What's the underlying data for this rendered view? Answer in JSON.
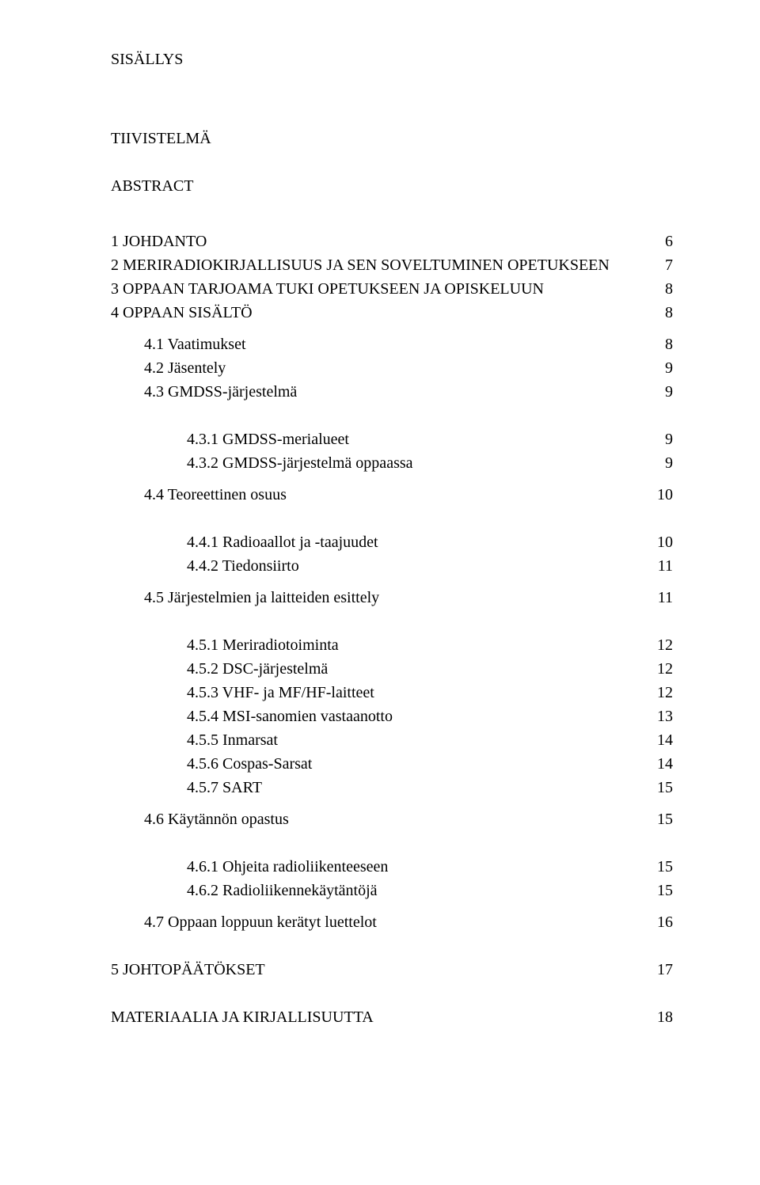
{
  "headings": {
    "sisallys": "SISÄLLYS",
    "tiivistelma": "TIIVISTELMÄ",
    "abstract": "ABSTRACT"
  },
  "toc": [
    {
      "label": "1  JOHDANTO",
      "page": "6",
      "indent": 0
    },
    {
      "label": "2  MERIRADIOKIRJALLISUUS JA SEN SOVELTUMINEN OPETUKSEEN",
      "page": "7",
      "indent": 0
    },
    {
      "label": "3  OPPAAN TARJOAMA TUKI OPETUKSEEN JA OPISKELUUN",
      "page": "8",
      "indent": 0
    },
    {
      "label": "4  OPPAAN SISÄLTÖ",
      "page": "8",
      "indent": 0
    },
    {
      "label": "4.1  Vaatimukset",
      "page": "8",
      "indent": 1
    },
    {
      "label": "4.2  Jäsentely",
      "page": "9",
      "indent": 1
    },
    {
      "label": "4.3  GMDSS-järjestelmä",
      "page": "9",
      "indent": 1
    },
    {
      "label": "4.3.1  GMDSS-merialueet",
      "page": "9",
      "indent": 2
    },
    {
      "label": "4.3.2  GMDSS-järjestelmä oppaassa",
      "page": "9",
      "indent": 2
    },
    {
      "label": "4.4  Teoreettinen osuus",
      "page": "10",
      "indent": 1
    },
    {
      "label": "4.4.1  Radioaallot ja -taajuudet",
      "page": "10",
      "indent": 2
    },
    {
      "label": "4.4.2  Tiedonsiirto",
      "page": "11",
      "indent": 2
    },
    {
      "label": "4.5  Järjestelmien ja laitteiden esittely",
      "page": "11",
      "indent": 1
    },
    {
      "label": "4.5.1  Meriradiotoiminta",
      "page": "12",
      "indent": 2
    },
    {
      "label": "4.5.2  DSC-järjestelmä",
      "page": "12",
      "indent": 2
    },
    {
      "label": "4.5.3  VHF- ja MF/HF-laitteet",
      "page": "12",
      "indent": 2
    },
    {
      "label": "4.5.4  MSI-sanomien vastaanotto",
      "page": "13",
      "indent": 2
    },
    {
      "label": "4.5.5  Inmarsat",
      "page": "14",
      "indent": 2
    },
    {
      "label": "4.5.6  Cospas-Sarsat",
      "page": "14",
      "indent": 2
    },
    {
      "label": "4.5.7  SART",
      "page": "15",
      "indent": 2
    },
    {
      "label": "4.6  Käytännön opastus",
      "page": "15",
      "indent": 1
    },
    {
      "label": "4.6.1  Ohjeita radioliikenteeseen",
      "page": "15",
      "indent": 2
    },
    {
      "label": "4.6.2  Radioliikennekäytäntöjä",
      "page": "15",
      "indent": 2
    },
    {
      "label": "4.7  Oppaan loppuun kerätyt luettelot",
      "page": "16",
      "indent": 1
    },
    {
      "label": "5  JOHTOPÄÄTÖKSET",
      "page": "17",
      "indent": 0
    },
    {
      "label": "MATERIAALIA JA KIRJALLISUUTTA",
      "page": "18",
      "indent": 0
    }
  ],
  "gaps": {
    "after_index": {
      "-1": "l",
      "3": "s",
      "6": "m",
      "8": "s",
      "9": "m",
      "11": "s",
      "12": "m",
      "19": "s",
      "20": "m",
      "22": "s",
      "23": "m",
      "24": "m"
    }
  }
}
